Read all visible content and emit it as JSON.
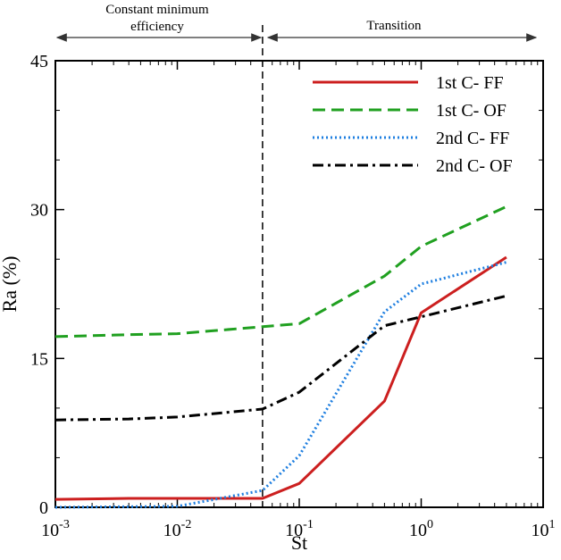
{
  "chart_data": {
    "type": "line",
    "xlabel": "St",
    "ylabel": "Ra (%)",
    "xscale": "log",
    "xlim": [
      0.001,
      10
    ],
    "ylim": [
      0,
      45
    ],
    "yticks": [
      0,
      15,
      30,
      45
    ],
    "xticks": [
      0.001,
      0.01,
      0.1,
      1,
      10
    ],
    "legend_position": "top-right",
    "grid": false,
    "regions": [
      {
        "label_line1": "Constant minimum",
        "label_line2": "efficiency",
        "x_start": 0.001,
        "x_end": 0.05
      },
      {
        "label_line1": "Transition",
        "label_line2": "",
        "x_start": 0.05,
        "x_end": 10
      }
    ],
    "divider_x": 0.05,
    "series": [
      {
        "name": "1st C- FF",
        "color": "#cc1f1f",
        "dash": "solid",
        "x": [
          0.001,
          0.004,
          0.01,
          0.05,
          0.1,
          0.5,
          1,
          5
        ],
        "y": [
          0.8,
          0.9,
          0.9,
          0.9,
          2.4,
          10.7,
          19.6,
          25.2
        ]
      },
      {
        "name": "1st C- OF",
        "color": "#20a020",
        "dash": "dashed",
        "x": [
          0.001,
          0.004,
          0.01,
          0.05,
          0.1,
          0.5,
          1,
          5
        ],
        "y": [
          17.2,
          17.4,
          17.5,
          18.2,
          18.5,
          23.3,
          26.3,
          30.3
        ]
      },
      {
        "name": "2nd C- FF",
        "color": "#1f7fe0",
        "dash": "dotted",
        "x": [
          0.001,
          0.01,
          0.05,
          0.1,
          0.5,
          1,
          5
        ],
        "y": [
          0.0,
          0.1,
          1.7,
          5.2,
          19.7,
          22.5,
          24.7
        ]
      },
      {
        "name": "2nd C- OF",
        "color": "#000000",
        "dash": "dashdot",
        "x": [
          0.001,
          0.004,
          0.01,
          0.05,
          0.1,
          0.5,
          1,
          5
        ],
        "y": [
          8.8,
          8.9,
          9.1,
          9.9,
          11.6,
          18.3,
          19.2,
          21.3
        ]
      }
    ]
  }
}
